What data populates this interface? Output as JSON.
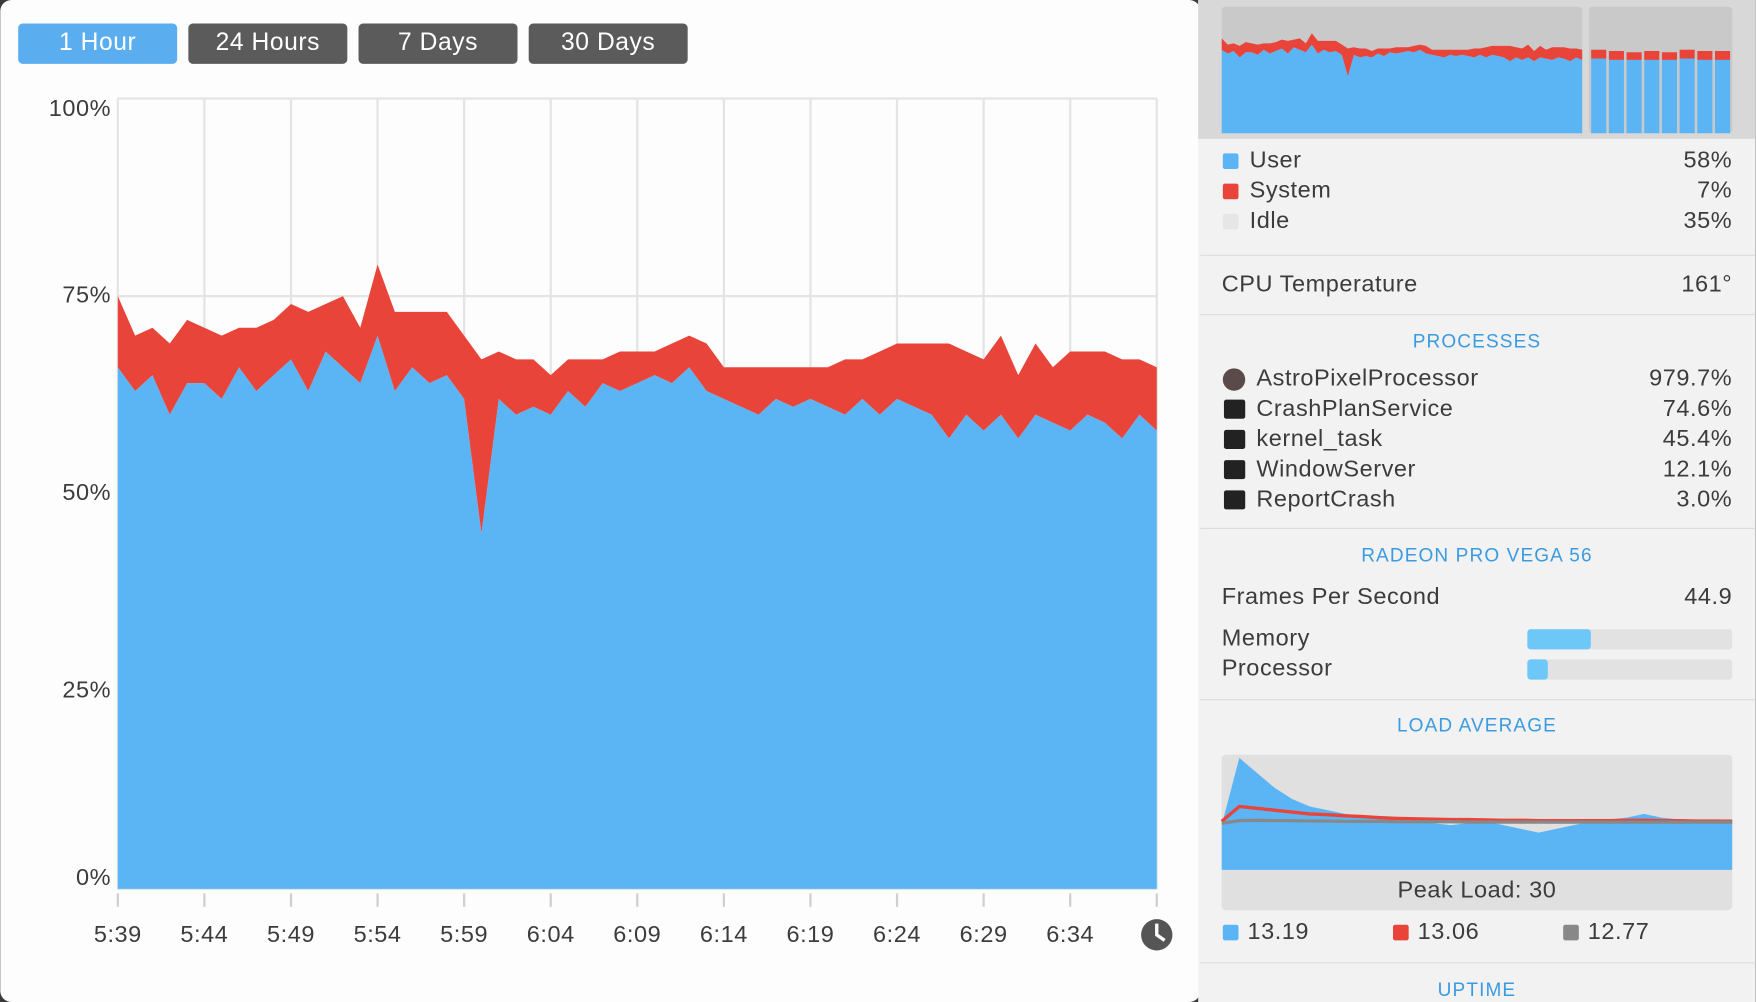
{
  "buttons": [
    "1 Hour",
    "24 Hours",
    "7 Days",
    "30 Days"
  ],
  "chart_data": {
    "type": "area",
    "stacked": true,
    "categories": [
      "5:39",
      null,
      null,
      null,
      null,
      "5:44",
      null,
      null,
      null,
      null,
      "5:49",
      null,
      null,
      null,
      null,
      "5:54",
      null,
      null,
      null,
      null,
      "5:59",
      null,
      null,
      null,
      null,
      "6:04",
      null,
      null,
      null,
      null,
      "6:09",
      null,
      null,
      null,
      null,
      "6:14",
      null,
      null,
      null,
      null,
      "6:19",
      null,
      null,
      null,
      null,
      "6:24",
      null,
      null,
      null,
      null,
      "6:29",
      null,
      null,
      null,
      null,
      "6:34",
      null,
      null,
      null,
      null,
      null
    ],
    "series": [
      {
        "name": "User",
        "color": "#5bb5f5",
        "values": [
          66,
          63,
          65,
          60,
          64,
          64,
          62,
          66,
          63,
          65,
          67,
          63,
          68,
          66,
          64,
          70,
          63,
          66,
          64,
          65,
          62,
          45,
          62,
          60,
          61,
          60,
          63,
          61,
          64,
          63,
          64,
          65,
          64,
          66,
          63,
          62,
          61,
          60,
          62,
          61,
          62,
          61,
          60,
          62,
          60,
          62,
          61,
          60,
          57,
          60,
          58,
          60,
          57,
          60,
          59,
          58,
          60,
          59,
          57,
          60,
          58
        ]
      },
      {
        "name": "System",
        "color": "#e8443a",
        "values": [
          9,
          7,
          6,
          9,
          8,
          7,
          8,
          5,
          8,
          7,
          7,
          10,
          6,
          9,
          7,
          9,
          10,
          7,
          9,
          8,
          8,
          22,
          6,
          7,
          6,
          5,
          4,
          6,
          3,
          5,
          4,
          3,
          5,
          4,
          6,
          4,
          5,
          6,
          4,
          5,
          4,
          5,
          7,
          5,
          8,
          7,
          8,
          9,
          12,
          8,
          9,
          10,
          8,
          9,
          7,
          10,
          8,
          9,
          10,
          7,
          8
        ]
      }
    ],
    "ylim": [
      0,
      100
    ],
    "yticks": [
      {
        "value": 0,
        "label": "0%"
      },
      {
        "value": 25,
        "label": "25%"
      },
      {
        "value": 50,
        "label": "50%"
      },
      {
        "value": 75,
        "label": "75%"
      },
      {
        "value": 100,
        "label": "100%"
      }
    ],
    "grid": true
  },
  "recent_bars": {
    "user": [
      59,
      58,
      58,
      58,
      58,
      59,
      58,
      58
    ],
    "system": [
      7,
      7,
      6,
      7,
      6,
      7,
      7,
      7
    ]
  },
  "legend": [
    {
      "name": "User",
      "value": "58%",
      "color": "#5bb5f5"
    },
    {
      "name": "System",
      "value": "7%",
      "color": "#e8443a"
    },
    {
      "name": "Idle",
      "value": "35%",
      "color": "#e6e6e6"
    }
  ],
  "temperature": {
    "label": "CPU Temperature",
    "value": "161°"
  },
  "processes": {
    "title": "PROCESSES",
    "rows": [
      [
        "AstroPixelProcessor",
        "979.7%"
      ],
      [
        "CrashPlanService",
        "74.6%"
      ],
      [
        "kernel_task",
        "45.4%"
      ],
      [
        "WindowServer",
        "12.1%"
      ],
      [
        "ReportCrash",
        "3.0%"
      ]
    ]
  },
  "gpu": {
    "title": "RADEON PRO VEGA 56",
    "fps_label": "Frames Per Second",
    "fps": "44.9",
    "memory_label": "Memory",
    "memory": 31,
    "processor_label": "Processor",
    "processor": 10
  },
  "load_average": {
    "title": "LOAD AVERAGE",
    "peak_label": "Peak Load: 30",
    "series": [
      {
        "value": "13.19",
        "color": "#5bb5f5",
        "values": [
          12,
          30,
          26,
          22,
          19,
          17,
          16,
          15,
          14.5,
          14,
          13.5,
          13,
          12.5,
          12,
          12.5,
          13,
          12,
          11,
          10,
          11,
          12,
          13,
          13.5,
          14,
          15,
          14,
          13.5,
          13.2,
          13.1,
          13.2
        ]
      },
      {
        "value": "13.06",
        "color": "#e8443a",
        "values": [
          13,
          17,
          16.5,
          16,
          15.5,
          15,
          14.8,
          14.5,
          14.3,
          14,
          13.8,
          13.7,
          13.6,
          13.5,
          13.5,
          13.4,
          13.3,
          13.3,
          13.2,
          13.2,
          13.2,
          13.2,
          13.2,
          13.3,
          13.3,
          13.2,
          13.2,
          13.1,
          13.1,
          13.06
        ]
      },
      {
        "value": "12.77",
        "color": "#888888",
        "values": [
          12.5,
          13.2,
          13.3,
          13.2,
          13.2,
          13.1,
          13.1,
          13,
          13,
          13,
          12.9,
          12.9,
          12.9,
          12.9,
          12.8,
          12.8,
          12.8,
          12.8,
          12.8,
          12.8,
          12.8,
          12.8,
          12.8,
          12.8,
          12.8,
          12.8,
          12.8,
          12.8,
          12.8,
          12.77
        ]
      }
    ]
  },
  "uptime": {
    "title": "UPTIME"
  }
}
